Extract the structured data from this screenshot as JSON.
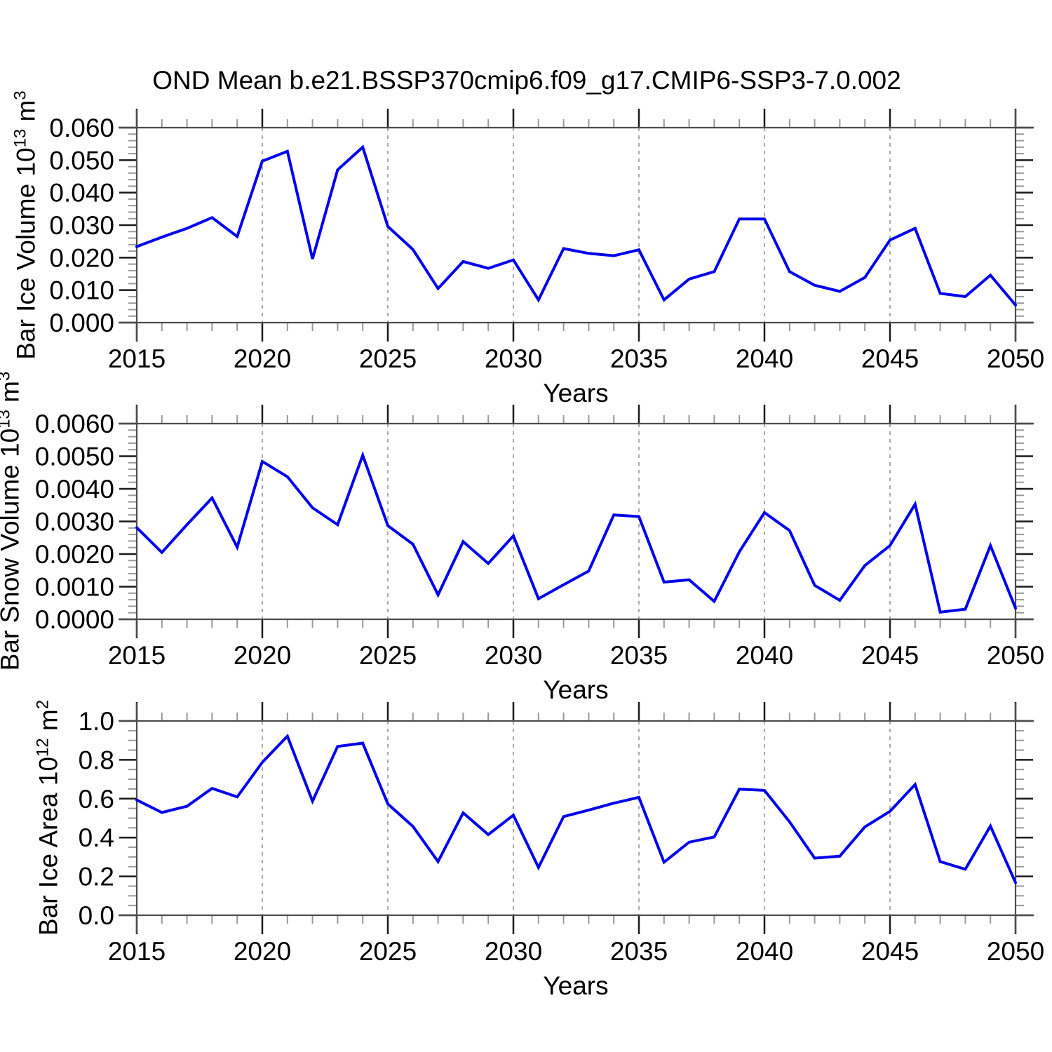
{
  "title": "OND Mean b.e21.BSSP370cmip6.f09_g17.CMIP6-SSP3-7.0.002",
  "colors": {
    "line": "#0000EE",
    "frame": "#4d4d4d",
    "major_tick": "#1a1a1a",
    "minor_tick": "#999999",
    "gridline": "#aaaaaa",
    "text": "#000000"
  },
  "x_axis": {
    "label": "Years",
    "start": 2015,
    "end": 2050,
    "major_step": 5,
    "minor_step": 1,
    "major_tick_labels": [
      "2015",
      "2020",
      "2025",
      "2030",
      "2035",
      "2040",
      "2045",
      "2050"
    ],
    "gridline_years": [
      2020,
      2025,
      2030,
      2035,
      2040,
      2045
    ]
  },
  "chart_data": [
    {
      "type": "line",
      "panel": "bar-ice-volume",
      "ylabel": {
        "name": "Bar Ice Volume ",
        "base": "10",
        "exp": "13",
        "unit": " m",
        "unit_exp": "3"
      },
      "xlabel": "Years",
      "ylim": [
        0,
        0.06
      ],
      "y_major_step": 0.01,
      "y_minor_per_major": 4,
      "y_tick_labels": [
        "0.000",
        "0.010",
        "0.020",
        "0.030",
        "0.040",
        "0.050",
        "0.060"
      ],
      "x": [
        2015,
        2016,
        2017,
        2018,
        2019,
        2020,
        2021,
        2022,
        2023,
        2024,
        2025,
        2026,
        2027,
        2028,
        2029,
        2030,
        2031,
        2032,
        2033,
        2034,
        2035,
        2036,
        2037,
        2038,
        2039,
        2040,
        2041,
        2042,
        2043,
        2044,
        2045,
        2046,
        2047,
        2048,
        2049,
        2050
      ],
      "values": [
        0.0234,
        0.0263,
        0.029,
        0.0323,
        0.0265,
        0.0497,
        0.0527,
        0.0196,
        0.047,
        0.054,
        0.0296,
        0.0225,
        0.0105,
        0.0188,
        0.0167,
        0.0193,
        0.007,
        0.0228,
        0.0213,
        0.0206,
        0.0224,
        0.007,
        0.0134,
        0.0157,
        0.0319,
        0.0319,
        0.0157,
        0.0115,
        0.0096,
        0.0139,
        0.0254,
        0.029,
        0.009,
        0.008,
        0.0146,
        0.0054
      ]
    },
    {
      "type": "line",
      "panel": "bar-snow-volume",
      "ylabel": {
        "name": "Bar Snow Volume ",
        "base": "10",
        "exp": "13",
        "unit": " m",
        "unit_exp": "3"
      },
      "xlabel": "Years",
      "ylim": [
        0,
        0.006
      ],
      "y_major_step": 0.001,
      "y_minor_per_major": 4,
      "y_tick_labels": [
        "0.0000",
        "0.0010",
        "0.0020",
        "0.0030",
        "0.0040",
        "0.0050",
        "0.0060"
      ],
      "x": [
        2015,
        2016,
        2017,
        2018,
        2019,
        2020,
        2021,
        2022,
        2023,
        2024,
        2025,
        2026,
        2027,
        2028,
        2029,
        2030,
        2031,
        2032,
        2033,
        2034,
        2035,
        2036,
        2037,
        2038,
        2039,
        2040,
        2041,
        2042,
        2043,
        2044,
        2045,
        2046,
        2047,
        2048,
        2049,
        2050
      ],
      "values": [
        0.00281,
        0.00205,
        0.0029,
        0.00372,
        0.00221,
        0.00484,
        0.00437,
        0.00342,
        0.0029,
        0.00503,
        0.00287,
        0.0023,
        0.00075,
        0.00238,
        0.00171,
        0.00256,
        0.00063,
        0.00106,
        0.00148,
        0.0032,
        0.00315,
        0.00114,
        0.00121,
        0.00055,
        0.00207,
        0.00327,
        0.00272,
        0.00104,
        0.00058,
        0.00165,
        0.00226,
        0.00353,
        0.00022,
        0.00031,
        0.00226,
        0.00034
      ]
    },
    {
      "type": "line",
      "panel": "bar-ice-area",
      "ylabel": {
        "name": "Bar Ice Area ",
        "base": "10",
        "exp": "12",
        "unit": " m",
        "unit_exp": "2"
      },
      "xlabel": "Years",
      "ylim": [
        0,
        1.0
      ],
      "y_major_step": 0.2,
      "y_minor_per_major": 3,
      "y_tick_labels": [
        "0.0",
        "0.2",
        "0.4",
        "0.6",
        "0.8",
        "1.0"
      ],
      "x": [
        2015,
        2016,
        2017,
        2018,
        2019,
        2020,
        2021,
        2022,
        2023,
        2024,
        2025,
        2026,
        2027,
        2028,
        2029,
        2030,
        2031,
        2032,
        2033,
        2034,
        2035,
        2036,
        2037,
        2038,
        2039,
        2040,
        2041,
        2042,
        2043,
        2044,
        2045,
        2046,
        2047,
        2048,
        2049,
        2050
      ],
      "values": [
        0.593,
        0.529,
        0.561,
        0.653,
        0.609,
        0.787,
        0.922,
        0.587,
        0.869,
        0.886,
        0.573,
        0.457,
        0.276,
        0.527,
        0.415,
        0.515,
        0.246,
        0.508,
        0.541,
        0.577,
        0.607,
        0.273,
        0.376,
        0.403,
        0.649,
        0.643,
        0.481,
        0.294,
        0.304,
        0.455,
        0.535,
        0.673,
        0.276,
        0.237,
        0.459,
        0.168
      ]
    }
  ]
}
